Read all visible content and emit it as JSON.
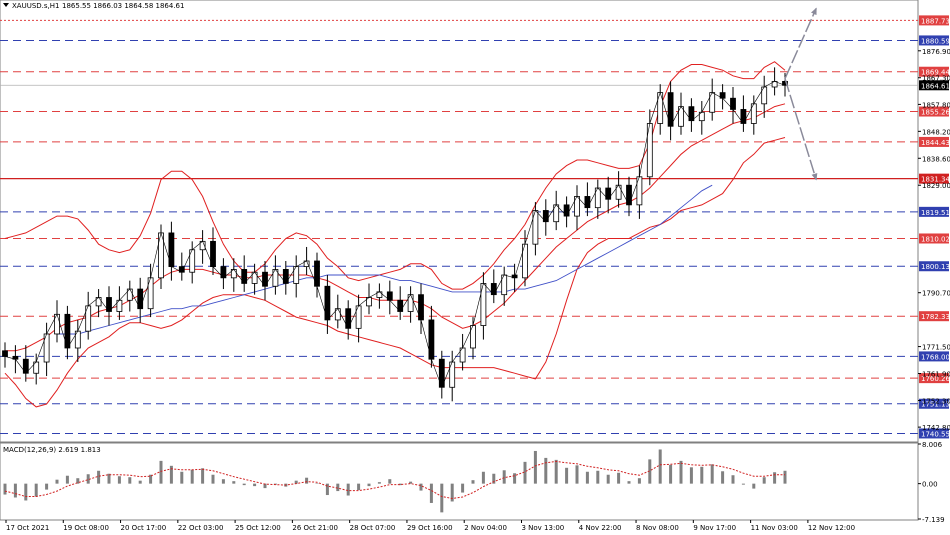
{
  "chart_data": [
    {
      "type": "line",
      "title": "XAUUSD.s,H1",
      "ohlc_text": "1865.55 1866.03 1864.58 1864.61",
      "ylim": [
        1737.5,
        1895.0
      ],
      "price_ticks": [
        "1876.90",
        "1867.30",
        "1857.80",
        "1848.20",
        "1838.60",
        "1829.00",
        "1790.70",
        "1771.50",
        "1761.90",
        "1752.30",
        "1742.80"
      ],
      "x_tick_labels": [
        "17 Oct 2021",
        "19 Oct 08:00",
        "20 Oct 17:00",
        "22 Oct 03:00",
        "25 Oct 12:00",
        "26 Oct 21:00",
        "28 Oct 07:00",
        "29 Oct 16:00",
        "2 Nov 04:00",
        "3 Nov 13:00",
        "4 Nov 22:00",
        "8 Nov 08:00",
        "9 Nov 17:00",
        "11 Nov 03:00",
        "12 Nov 12:00"
      ],
      "current_price": "1864.61",
      "current_price_value": 1864.61,
      "levels": [
        {
          "value": 1887.73,
          "label": "1887.73",
          "color": "#e04040",
          "style": "dotted"
        },
        {
          "value": 1880.59,
          "label": "1880.59",
          "color": "#3040b0",
          "style": "dashed"
        },
        {
          "value": 1869.44,
          "label": "1869.44",
          "color": "#e04040",
          "style": "dashed"
        },
        {
          "value": 1855.26,
          "label": "1855.26",
          "color": "#e04040",
          "style": "dashed"
        },
        {
          "value": 1844.43,
          "label": "1844.43",
          "color": "#e04040",
          "style": "dashed"
        },
        {
          "value": 1831.34,
          "label": "1831.34",
          "color": "#d02020",
          "style": "solid"
        },
        {
          "value": 1819.51,
          "label": "1819.51",
          "color": "#3040b0",
          "style": "dashed"
        },
        {
          "value": 1810.02,
          "label": "1810.02",
          "color": "#e04040",
          "style": "dashed"
        },
        {
          "value": 1800.13,
          "label": "1800.13",
          "color": "#3040b0",
          "style": "dashed"
        },
        {
          "value": 1782.33,
          "label": "1782.33",
          "color": "#e04040",
          "style": "dashed"
        },
        {
          "value": 1768.0,
          "label": "1768.00",
          "color": "#3040b0",
          "style": "dashed"
        },
        {
          "value": 1760.26,
          "label": "1760.26",
          "color": "#e04040",
          "style": "dashed"
        },
        {
          "value": 1751.13,
          "label": "1751.13",
          "color": "#3040b0",
          "style": "dashed"
        },
        {
          "value": 1740.55,
          "label": "1740.55",
          "color": "#3040b0",
          "style": "dashed"
        }
      ],
      "series": [
        {
          "name": "",
          "role": "close",
          "color": "#000000",
          "values": [
            1768,
            1767,
            1762,
            1766,
            1776,
            1783,
            1771,
            1777,
            1786,
            1789,
            1784,
            1788,
            1792,
            1785,
            1796,
            1812,
            1800,
            1798,
            1806,
            1809,
            1800,
            1796,
            1799,
            1794,
            1798,
            1793,
            1799,
            1794,
            1800,
            1802,
            1793,
            1781,
            1785,
            1778,
            1786,
            1789,
            1791,
            1788,
            1784,
            1790,
            1781,
            1767,
            1757,
            1766,
            1771,
            1779,
            1794,
            1790,
            1797,
            1796,
            1808,
            1820,
            1816,
            1822,
            1818,
            1825,
            1821,
            1828,
            1824,
            1829,
            1822,
            1832,
            1851,
            1862,
            1850,
            1857,
            1852,
            1855,
            1862,
            1860,
            1856,
            1851,
            1858,
            1864,
            1866,
            1864.61
          ]
        },
        {
          "name": "",
          "role": "bollinger-upper",
          "color": "#e02020",
          "values": [
            1810,
            1811,
            1812,
            1814,
            1816,
            1818,
            1818,
            1817,
            1813,
            1808,
            1806,
            1805,
            1806,
            1811,
            1819,
            1831,
            1834,
            1834,
            1831,
            1825,
            1816,
            1808,
            1802,
            1798,
            1798,
            1801,
            1806,
            1810,
            1812,
            1811,
            1808,
            1803,
            1800,
            1796,
            1795,
            1796,
            1797,
            1798,
            1799,
            1801,
            1801,
            1799,
            1794,
            1792,
            1792,
            1794,
            1797,
            1801,
            1806,
            1810,
            1815,
            1822,
            1828,
            1833,
            1836,
            1838,
            1838,
            1837,
            1836,
            1835,
            1835,
            1836,
            1844,
            1857,
            1866,
            1870,
            1872,
            1872,
            1871,
            1870,
            1868,
            1867,
            1867,
            1871,
            1873,
            1870
          ]
        },
        {
          "name": "",
          "role": "bollinger-middle",
          "color": "#e02020",
          "values": [
            1770,
            1770,
            1771,
            1773,
            1775,
            1778,
            1780,
            1781,
            1782,
            1784,
            1785,
            1786,
            1788,
            1790,
            1793,
            1796,
            1798,
            1799,
            1799,
            1799,
            1798,
            1797,
            1797,
            1796,
            1796,
            1797,
            1797,
            1797,
            1797,
            1797,
            1796,
            1795,
            1793,
            1791,
            1789,
            1789,
            1788,
            1788,
            1788,
            1788,
            1787,
            1785,
            1782,
            1780,
            1778,
            1779,
            1781,
            1784,
            1787,
            1791,
            1795,
            1799,
            1803,
            1807,
            1810,
            1813,
            1816,
            1818,
            1820,
            1822,
            1823,
            1825,
            1828,
            1832,
            1836,
            1840,
            1843,
            1845,
            1847,
            1849,
            1851,
            1852,
            1853,
            1855,
            1857,
            1858
          ]
        },
        {
          "name": "",
          "role": "bollinger-lower",
          "color": "#e02020",
          "values": [
            1762,
            1758,
            1753,
            1750,
            1751,
            1756,
            1762,
            1767,
            1771,
            1773,
            1775,
            1778,
            1780,
            1780,
            1779,
            1778,
            1779,
            1781,
            1784,
            1787,
            1789,
            1790,
            1790,
            1790,
            1789,
            1788,
            1786,
            1784,
            1782,
            1781,
            1780,
            1779,
            1777,
            1776,
            1775,
            1774,
            1773,
            1772,
            1771,
            1769,
            1767,
            1765,
            1764,
            1764,
            1764,
            1764,
            1764,
            1764,
            1763,
            1762,
            1761,
            1760,
            1766,
            1776,
            1788,
            1799,
            1805,
            1808,
            1810,
            1810,
            1810,
            1812,
            1814,
            1815,
            1817,
            1820,
            1821,
            1822,
            1824,
            1826,
            1831,
            1837,
            1840,
            1844,
            1845,
            1846
          ]
        },
        {
          "name": "",
          "role": "moving-average",
          "color": "#4050c8",
          "values": [
            null,
            null,
            null,
            null,
            null,
            1776,
            1776,
            1776,
            1777,
            1778,
            1779,
            1780,
            1781,
            1782,
            1783,
            1784,
            1785,
            1785,
            1786,
            1786,
            1787,
            1788,
            1789,
            1790,
            1791,
            1792,
            1793,
            1794,
            1795,
            1796,
            1796,
            1797,
            1797,
            1797,
            1797,
            1797,
            1797,
            1796,
            1795,
            1795,
            1794,
            1793,
            1792,
            1791,
            1791,
            1791,
            1791,
            1791,
            1791,
            1792,
            1792,
            1793,
            1794,
            1795,
            1797,
            1799,
            1801,
            1803,
            1805,
            1807,
            1809,
            1811,
            1813,
            1815,
            1818,
            1821,
            1824,
            1827,
            1829,
            null,
            null,
            null,
            null,
            null,
            null,
            null
          ]
        }
      ],
      "forecast_arrows": [
        {
          "from": [
            75,
            1867
          ],
          "to": [
            78,
            1892
          ]
        },
        {
          "from": [
            75,
            1867
          ],
          "to": [
            78,
            1831
          ]
        }
      ]
    },
    {
      "type": "bar",
      "title": "MACD(12,26,9) 2.619 1.813",
      "y_ticks": [
        "8.006",
        "0.00",
        "-7.139"
      ],
      "ylim": [
        -7.139,
        8.006
      ],
      "series": [
        {
          "name": "",
          "role": "histogram",
          "color": "#808080",
          "values": [
            -2.2,
            -2.8,
            -3.4,
            -2.6,
            -1.2,
            0.8,
            1.6,
            1.1,
            1.9,
            2.6,
            2.0,
            1.5,
            1.3,
            0.6,
            1.8,
            4.6,
            3.6,
            2.4,
            2.8,
            3.1,
            1.8,
            0.9,
            0.5,
            -0.3,
            -0.5,
            -0.9,
            -0.2,
            -0.6,
            0.6,
            1.2,
            0.1,
            -2.3,
            -1.5,
            -2.4,
            -1.3,
            -0.5,
            0.3,
            0.9,
            -0.3,
            0.4,
            -1.4,
            -3.9,
            -5.8,
            -3.6,
            -1.8,
            0.7,
            2.4,
            2.0,
            2.7,
            2.1,
            4.4,
            6.6,
            5.2,
            4.8,
            3.2,
            3.7,
            2.4,
            2.6,
            1.8,
            2.2,
            0.5,
            1.1,
            4.9,
            6.9,
            3.8,
            4.6,
            3.3,
            3.4,
            3.9,
            2.5,
            1.7,
            -0.2,
            -1.0,
            1.3,
            2.3,
            2.6
          ]
        },
        {
          "name": "",
          "role": "signal",
          "color": "#d02020",
          "values": [
            -1.5,
            -2.0,
            -2.6,
            -2.6,
            -2.2,
            -1.5,
            -0.5,
            0.2,
            0.8,
            1.5,
            1.8,
            1.8,
            1.7,
            1.4,
            1.5,
            2.5,
            3.0,
            2.8,
            2.8,
            2.9,
            2.6,
            2.0,
            1.4,
            0.9,
            0.4,
            -0.1,
            -0.2,
            -0.3,
            0.0,
            0.4,
            0.3,
            -0.5,
            -0.9,
            -1.4,
            -1.4,
            -1.1,
            -0.7,
            -0.2,
            -0.2,
            0.0,
            -0.4,
            -1.4,
            -2.6,
            -3.0,
            -2.7,
            -1.8,
            -0.6,
            0.4,
            1.2,
            1.6,
            2.4,
            3.6,
            4.2,
            4.5,
            4.2,
            4.0,
            3.5,
            3.2,
            2.8,
            2.6,
            2.0,
            1.7,
            2.6,
            3.8,
            3.9,
            4.1,
            3.8,
            3.7,
            3.8,
            3.4,
            2.9,
            2.1,
            1.5,
            1.5,
            1.8,
            1.8
          ]
        }
      ]
    }
  ]
}
